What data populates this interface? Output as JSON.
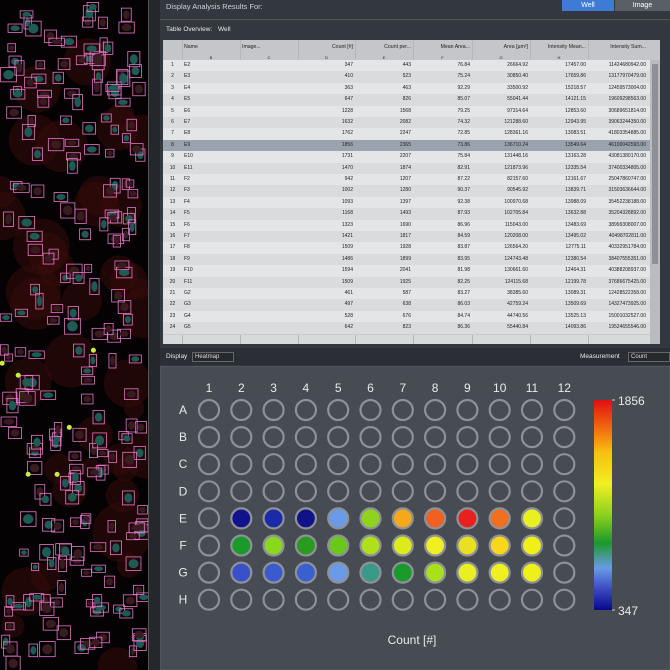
{
  "header": {
    "title": "Display Analysis Results For:",
    "buttons": [
      "Well",
      "Image"
    ],
    "active_button": "Well"
  },
  "table_overview": {
    "label": "Table Overview:",
    "value": "Well"
  },
  "table": {
    "columns": [
      "Name",
      "Image...",
      "Count [#]",
      "Count per...",
      "Mean Area...",
      "Area [µm²]",
      "Intensity Mean...",
      "Intensity Sum..."
    ],
    "column_letters": [
      "B",
      "C",
      "D",
      "E",
      "F",
      "G",
      "H"
    ],
    "selected_row": 8,
    "rows": [
      [
        "1",
        "E2",
        "347",
        "443",
        "76.84",
        "26664.92",
        "17457.00",
        "11424680942.00"
      ],
      [
        "2",
        "E3",
        "410",
        "523",
        "75.24",
        "30850.40",
        "17659.86",
        "13177970479.00"
      ],
      [
        "3",
        "E4",
        "363",
        "463",
        "92.29",
        "33500.92",
        "15218.57",
        "12459573004.00"
      ],
      [
        "4",
        "E5",
        "647",
        "826",
        "85.07",
        "55041.44",
        "14121.15",
        "19609298563.00"
      ],
      [
        "5",
        "E6",
        "1228",
        "1568",
        "79.25",
        "97314.64",
        "12853.60",
        "30689651814.00"
      ],
      [
        "6",
        "E7",
        "1632",
        "2082",
        "74.32",
        "121288.60",
        "12943.95",
        "39063244350.00"
      ],
      [
        "7",
        "E8",
        "1762",
        "2247",
        "72.85",
        "128361.16",
        "13083.51",
        "41803354885.00"
      ],
      [
        "8",
        "E9",
        "1856",
        "2365",
        "73.86",
        "136710.24",
        "13549.64",
        "46100042593.00"
      ],
      [
        "9",
        "E10",
        "1731",
        "2207",
        "75.84",
        "131448.16",
        "13163.28",
        "43081380170.00"
      ],
      [
        "10",
        "E11",
        "1470",
        "1874",
        "82.91",
        "121873.96",
        "12335.54",
        "37400334805.00"
      ],
      [
        "11",
        "F2",
        "942",
        "1207",
        "87.22",
        "82157.60",
        "12161.67",
        "25047860747.00"
      ],
      [
        "12",
        "F3",
        "1002",
        "1280",
        "90.37",
        "90545.92",
        "13839.71",
        "31503636644.00"
      ],
      [
        "13",
        "F4",
        "1093",
        "1397",
        "92.38",
        "100970.68",
        "13988.09",
        "35452238188.00"
      ],
      [
        "14",
        "F5",
        "1168",
        "1493",
        "87.93",
        "102705.84",
        "13632.88",
        "35204328892.00"
      ],
      [
        "15",
        "F6",
        "1323",
        "1690",
        "86.96",
        "115043.00",
        "13483.69",
        "38999308007.00"
      ],
      [
        "16",
        "F7",
        "1421",
        "1817",
        "84.59",
        "120208.00",
        "13495.02",
        "40498702811.00"
      ],
      [
        "17",
        "F8",
        "1509",
        "1928",
        "83.87",
        "126564.20",
        "12775.11",
        "40332951784.00"
      ],
      [
        "18",
        "F9",
        "1486",
        "1899",
        "83.95",
        "124743.48",
        "12380.54",
        "38407555351.00"
      ],
      [
        "19",
        "F10",
        "1594",
        "2041",
        "81.98",
        "130661.60",
        "12464.31",
        "40388208937.00"
      ],
      [
        "20",
        "F11",
        "1509",
        "1925",
        "82.25",
        "124115.68",
        "12199.78",
        "37686675425.00"
      ],
      [
        "21",
        "G2",
        "461",
        "587",
        "83.27",
        "38385.60",
        "13089.31",
        "12428522358.00"
      ],
      [
        "22",
        "G3",
        "497",
        "638",
        "86.03",
        "42759.24",
        "13509.69",
        "14327473925.00"
      ],
      [
        "23",
        "G4",
        "528",
        "676",
        "84.74",
        "44740.56",
        "13525.13",
        "15001032527.00"
      ],
      [
        "24",
        "G5",
        "642",
        "823",
        "86.36",
        "55440.84",
        "14093.86",
        "19524655546.00"
      ]
    ]
  },
  "display": {
    "label": "Display",
    "mode": "Heatmap",
    "measurement_label": "Measurement",
    "measurement": "Count"
  },
  "plate": {
    "row_labels": [
      "A",
      "B",
      "C",
      "D",
      "E",
      "F",
      "G",
      "H"
    ],
    "column_labels": [
      "1",
      "2",
      "3",
      "4",
      "5",
      "6",
      "7",
      "8",
      "9",
      "10",
      "11",
      "12"
    ],
    "well_colors": [
      [
        null,
        null,
        null,
        null,
        null,
        null,
        null,
        null,
        null,
        null,
        null,
        null
      ],
      [
        null,
        null,
        null,
        null,
        null,
        null,
        null,
        null,
        null,
        null,
        null,
        null
      ],
      [
        null,
        null,
        null,
        null,
        null,
        null,
        null,
        null,
        null,
        null,
        null,
        null
      ],
      [
        null,
        null,
        null,
        null,
        null,
        null,
        null,
        null,
        null,
        null,
        null,
        null
      ],
      [
        null,
        "#12128f",
        "#1b2aa8",
        "#10128a",
        "#6a9be8",
        "#8fd41c",
        "#f5a81a",
        "#f06020",
        "#e82020",
        "#f07020",
        "#e8f020",
        null
      ],
      [
        null,
        "#1a9a2a",
        "#8ad81e",
        "#2a9a20",
        "#6ac81a",
        "#b0e01a",
        "#dcec1a",
        "#f0f020",
        "#e8e020",
        "#f8d818",
        "#f0f018",
        null
      ],
      [
        null,
        "#3a50c8",
        "#3a5ad0",
        "#3a60d0",
        "#6a9ae8",
        "#3a9a8a",
        "#1a9a2a",
        "#a8e01a",
        "#e8f020",
        "#f0f020",
        "#f0f018",
        null
      ],
      [
        null,
        null,
        null,
        null,
        null,
        null,
        null,
        null,
        null,
        null,
        null,
        null
      ]
    ],
    "scale_lim": [
      347,
      1856
    ],
    "scale_ticks": [
      347,
      1856
    ],
    "axis_label": "Count [#]"
  }
}
